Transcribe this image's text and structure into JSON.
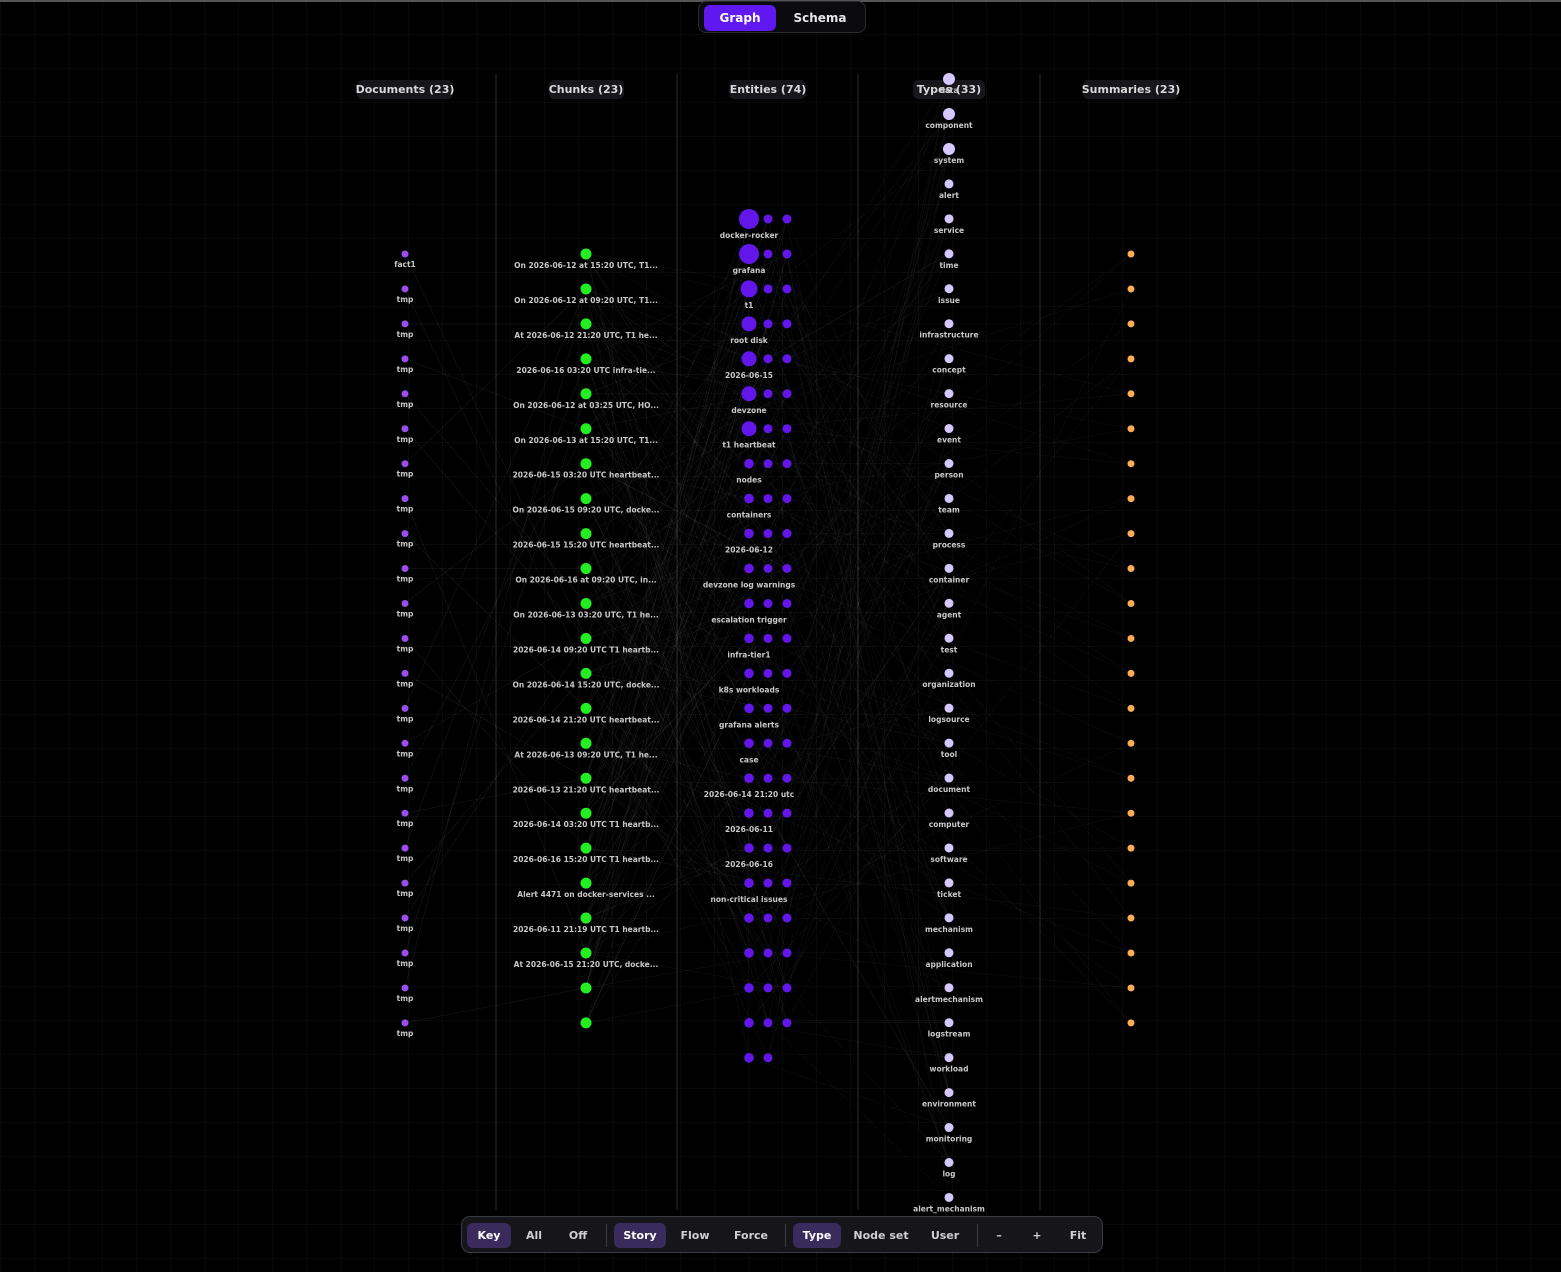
{
  "view_toggle": {
    "graph_label": "Graph",
    "schema_label": "Schema",
    "active": "Graph"
  },
  "columns": [
    {
      "id": "documents",
      "label": "Documents (23)",
      "color": "#9a4ef0"
    },
    {
      "id": "chunks",
      "label": "Chunks (23)",
      "color": "#22ee22"
    },
    {
      "id": "entities",
      "label": "Entities (74)",
      "color": "#6316ea"
    },
    {
      "id": "types",
      "label": "Types (33)",
      "color": "#d4c8ff"
    },
    {
      "id": "summaries",
      "label": "Summaries (23)",
      "color": "#ffad55"
    }
  ],
  "documents": [
    "fact1",
    "tmp",
    "tmp",
    "tmp",
    "tmp",
    "tmp",
    "tmp",
    "tmp",
    "tmp",
    "tmp",
    "tmp",
    "tmp",
    "tmp",
    "tmp",
    "tmp",
    "tmp",
    "tmp",
    "tmp",
    "tmp",
    "tmp",
    "tmp",
    "tmp",
    "tmp"
  ],
  "chunks": [
    "On 2026-06-12 at 15:20 UTC, T1...",
    "On 2026-06-12 at 09:20 UTC, T1...",
    "At 2026-06-12 21:20 UTC, T1 he...",
    "2026-06-16 03:20 UTC infra-tie...",
    "On 2026-06-12 at 03:25 UTC, HO...",
    "On 2026-06-13 at 15:20 UTC, T1...",
    "2026-06-15 03:20 UTC heartbeat...",
    "On 2026-06-15 09:20 UTC, docke...",
    "2026-06-15 15:20 UTC heartbeat...",
    "On 2026-06-16 at 09:20 UTC, in...",
    "On 2026-06-13 03:20 UTC, T1 he...",
    "2026-06-14 09:20 UTC T1 heartb...",
    "On 2026-06-14 15:20 UTC, docke...",
    "2026-06-14 21:20 UTC heartbeat...",
    "At 2026-06-13 09:20 UTC, T1 he...",
    "2026-06-13 21:20 UTC heartbeat...",
    "2026-06-14 03:20 UTC T1 heartb...",
    "2026-06-16 15:20 UTC T1 heartb...",
    "Alert 4471 on docker-services ...",
    "2026-06-11 21:19 UTC T1 heartb...",
    "At 2026-06-15 21:20 UTC, docke...",
    "",
    ""
  ],
  "entities": {
    "rows": [
      {
        "label": "docker-rocker",
        "size": 3,
        "extra": 2
      },
      {
        "label": "grafana",
        "size": 3,
        "extra": 2
      },
      {
        "label": "t1",
        "size": 2,
        "extra": 2
      },
      {
        "label": "root disk",
        "size": 1,
        "extra": 2
      },
      {
        "label": "2026-06-15",
        "size": 1,
        "extra": 2
      },
      {
        "label": "devzone",
        "size": 1,
        "extra": 2
      },
      {
        "label": "t1 heartbeat",
        "size": 1,
        "extra": 2
      },
      {
        "label": "nodes",
        "size": 0,
        "extra": 2
      },
      {
        "label": "containers",
        "size": 0,
        "extra": 2
      },
      {
        "label": "2026-06-12",
        "size": 0,
        "extra": 2
      },
      {
        "label": "devzone log warnings",
        "size": 0,
        "extra": 2
      },
      {
        "label": "escalation trigger",
        "size": 0,
        "extra": 2
      },
      {
        "label": "infra-tier1",
        "size": 0,
        "extra": 2
      },
      {
        "label": "k8s workloads",
        "size": 0,
        "extra": 2
      },
      {
        "label": "grafana alerts",
        "size": 0,
        "extra": 2
      },
      {
        "label": "case",
        "size": 0,
        "extra": 2
      },
      {
        "label": "2026-06-14 21:20 utc",
        "size": 0,
        "extra": 2
      },
      {
        "label": "2026-06-11",
        "size": 0,
        "extra": 2
      },
      {
        "label": "2026-06-16",
        "size": 0,
        "extra": 2
      },
      {
        "label": "non-critical issues",
        "size": 0,
        "extra": 2
      },
      {
        "label": "",
        "size": 0,
        "extra": 2
      },
      {
        "label": "",
        "size": 0,
        "extra": 2
      },
      {
        "label": "",
        "size": 0,
        "extra": 2
      },
      {
        "label": "",
        "size": 0,
        "extra": 2
      },
      {
        "label": "",
        "size": 0,
        "extra": 1
      }
    ]
  },
  "types": {
    "top_partial": "data",
    "items": [
      "component",
      "system",
      "alert",
      "service",
      "time",
      "issue",
      "infrastructure",
      "concept",
      "resource",
      "event",
      "person",
      "team",
      "process",
      "container",
      "agent",
      "test",
      "organization",
      "logsource",
      "tool",
      "document",
      "computer",
      "software",
      "ticket",
      "mechanism",
      "application",
      "alertmechanism",
      "logstream",
      "workload",
      "environment",
      "monitoring",
      "log",
      "alert_mechanism"
    ]
  },
  "summaries_count": 23,
  "toolbar": {
    "key": "Key",
    "all": "All",
    "off": "Off",
    "story": "Story",
    "flow": "Flow",
    "force": "Force",
    "type": "Type",
    "node_set": "Node set",
    "user": "User",
    "zoom_out": "–",
    "zoom_in": "+",
    "fit": "Fit",
    "active": [
      "Key",
      "Story",
      "Type"
    ]
  }
}
